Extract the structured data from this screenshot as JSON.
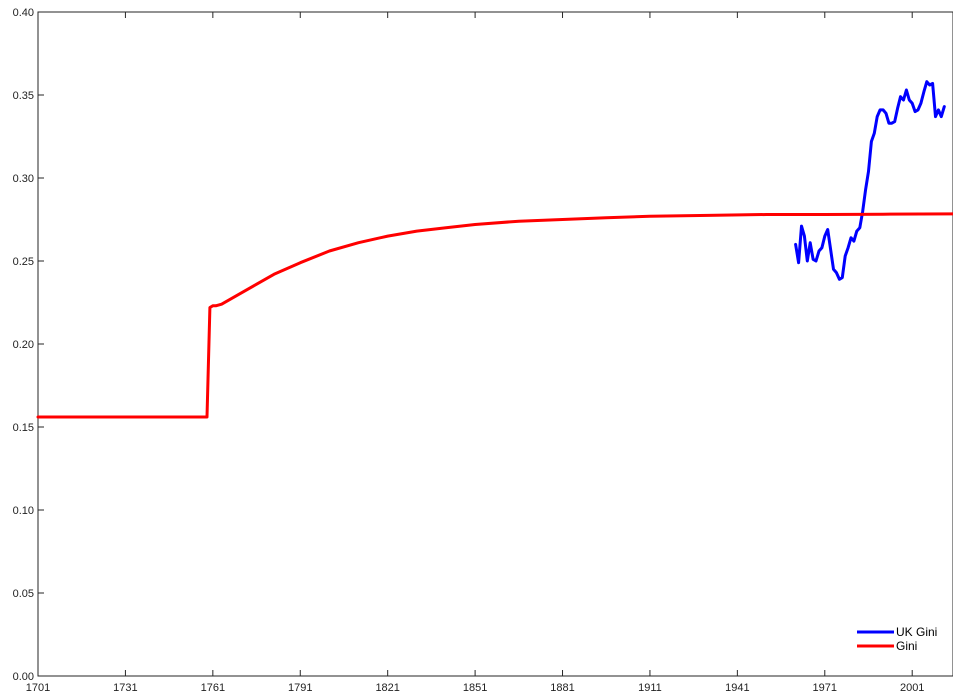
{
  "chart_data": {
    "type": "line",
    "title": "",
    "xlabel": "",
    "ylabel": "",
    "xlim": [
      1701,
      2015
    ],
    "ylim": [
      0.0,
      0.4
    ],
    "xticks": [
      1701,
      1731,
      1761,
      1791,
      1821,
      1851,
      1881,
      1911,
      1941,
      1971,
      2001
    ],
    "yticks": [
      0.0,
      0.05,
      0.1,
      0.15,
      0.2,
      0.25,
      0.3,
      0.35,
      0.4
    ],
    "ytick_labels": [
      "0.00",
      "0.05",
      "0.10",
      "0.15",
      "0.20",
      "0.25",
      "0.30",
      "0.35",
      "0.40"
    ],
    "grid": false,
    "legend_position": "bottom-right",
    "series": [
      {
        "name": "UK Gini",
        "color": "#0000ff",
        "x": [
          1961,
          1962,
          1963,
          1964,
          1965,
          1966,
          1967,
          1968,
          1969,
          1970,
          1971,
          1972,
          1973,
          1974,
          1975,
          1976,
          1977,
          1978,
          1979,
          1980,
          1981,
          1982,
          1983,
          1984,
          1985,
          1986,
          1987,
          1988,
          1989,
          1990,
          1991,
          1992,
          1993,
          1994,
          1995,
          1996,
          1997,
          1998,
          1999,
          2000,
          2001,
          2002,
          2003,
          2004,
          2005,
          2006,
          2007,
          2008,
          2009,
          2010,
          2011,
          2012
        ],
        "y": [
          0.26,
          0.249,
          0.271,
          0.265,
          0.25,
          0.261,
          0.251,
          0.25,
          0.256,
          0.258,
          0.265,
          0.269,
          0.257,
          0.245,
          0.243,
          0.239,
          0.24,
          0.253,
          0.258,
          0.264,
          0.262,
          0.268,
          0.27,
          0.28,
          0.293,
          0.304,
          0.322,
          0.327,
          0.337,
          0.341,
          0.341,
          0.339,
          0.333,
          0.333,
          0.334,
          0.342,
          0.349,
          0.347,
          0.353,
          0.347,
          0.345,
          0.34,
          0.341,
          0.345,
          0.352,
          0.358,
          0.356,
          0.357,
          0.337,
          0.341,
          0.337,
          0.343
        ]
      },
      {
        "name": "Gini",
        "color": "#ff0000",
        "x": [
          1701,
          1759,
          1760,
          1761,
          1762,
          1764,
          1770,
          1776,
          1782,
          1791,
          1801,
          1811,
          1821,
          1831,
          1841,
          1851,
          1866,
          1881,
          1896,
          1911,
          1931,
          1951,
          1971,
          1991,
          2015
        ],
        "y": [
          0.156,
          0.156,
          0.222,
          0.223,
          0.223,
          0.224,
          0.23,
          0.236,
          0.242,
          0.249,
          0.256,
          0.261,
          0.265,
          0.268,
          0.27,
          0.272,
          0.274,
          0.275,
          0.276,
          0.277,
          0.2775,
          0.278,
          0.278,
          0.2782,
          0.2784
        ]
      }
    ]
  }
}
